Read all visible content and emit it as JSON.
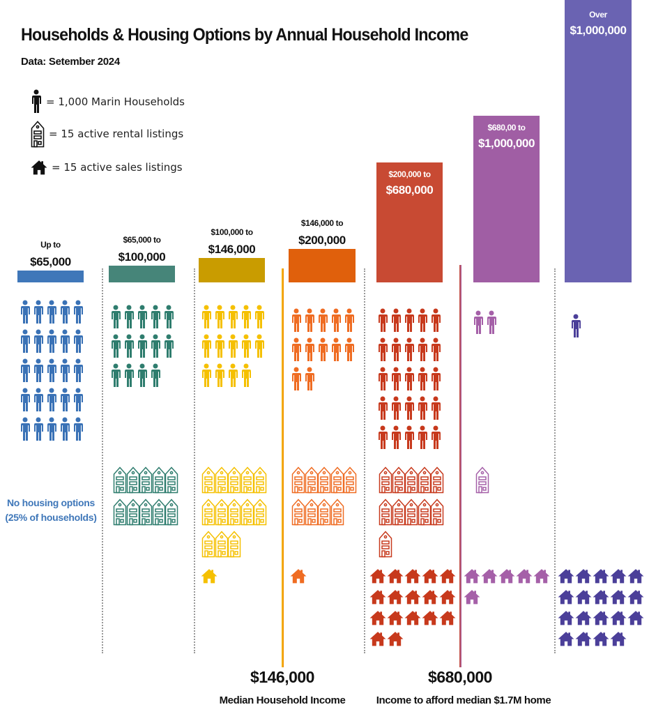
{
  "chart_data": {
    "type": "pictogram",
    "title": "Households & Housing Options by Annual Household Income",
    "subtitle": "Data: Setember 2024",
    "legend": {
      "households": "= 1,000 Marin Households",
      "rentals": "= 15 active rental listings",
      "sales": "= 15 active sales listings"
    },
    "units": {
      "household_icon": 1000,
      "rental_icon": 15,
      "sales_icon": 15
    },
    "columns": [
      {
        "range_top": "Up to",
        "range_bottom": "$65,000",
        "households_icons": 25,
        "rental_icons": 0,
        "sales_icons": 0,
        "bar_color": "#3f77b9",
        "icon_color": "#3a72b6"
      },
      {
        "range_top": "$65,000 to",
        "range_bottom": "$100,000",
        "households_icons": 14,
        "rental_icons": 10,
        "sales_icons": 0,
        "bar_color": "#468579",
        "icon_color": "#2f7d6e"
      },
      {
        "range_top": "$100,000 to",
        "range_bottom": "$146,000",
        "households_icons": 14,
        "rental_icons": 13,
        "sales_icons": 1,
        "bar_color": "#c99c00",
        "icon_color": "#f5c000"
      },
      {
        "range_top": "$146,000 to",
        "range_bottom": "$200,000",
        "households_icons": 12,
        "rental_icons": 9,
        "sales_icons": 1,
        "bar_color": "#e0600c",
        "icon_color": "#ef6c22"
      },
      {
        "range_top": "$200,000 to",
        "range_bottom": "$680,000",
        "households_icons": 25,
        "rental_icons": 11,
        "sales_icons": 17,
        "bar_color": "#c84a33",
        "icon_color": "#c7391c"
      },
      {
        "range_top": "$680,00 to",
        "range_bottom": "$1,000,000",
        "households_icons": 2,
        "rental_icons": 1,
        "sales_icons": 6,
        "bar_color": "#a05ea4",
        "icon_color": "#a560a8"
      },
      {
        "range_top": "Over",
        "range_bottom": "$1,000,000",
        "households_icons": 1,
        "rental_icons": 0,
        "sales_icons": 19,
        "bar_color": "#6a63b2",
        "icon_color": "#4b3f99"
      }
    ],
    "annotations": {
      "no_housing_line1": "No housing options",
      "no_housing_line2": "(25% of households)",
      "median_value": "$146,000",
      "median_label": "Median Household Income",
      "afford_value": "$680,000",
      "afford_label": "Income to afford median $1.7M home"
    },
    "reference_line_colors": {
      "median": "#f5a800",
      "afford": "#b04a7a"
    }
  }
}
